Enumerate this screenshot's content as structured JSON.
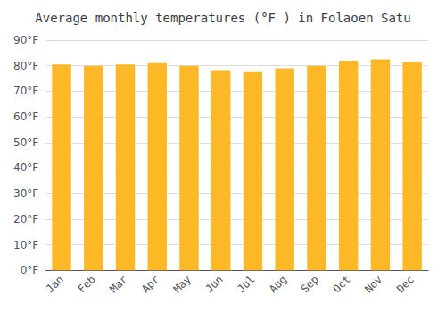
{
  "chart_data": {
    "type": "bar",
    "title": "Average monthly temperatures (°F ) in Folaoen Satu",
    "categories": [
      "Jan",
      "Feb",
      "Mar",
      "Apr",
      "May",
      "Jun",
      "Jul",
      "Aug",
      "Sep",
      "Oct",
      "Nov",
      "Dec"
    ],
    "values": [
      80.5,
      80.0,
      80.5,
      81.0,
      80.0,
      78.0,
      77.5,
      79.0,
      80.0,
      82.0,
      82.5,
      81.5
    ],
    "color": "#FDB827",
    "ylim": [
      0,
      90
    ],
    "yticks": [
      {
        "value": 0,
        "label": "0°F"
      },
      {
        "value": 10,
        "label": "10°F"
      },
      {
        "value": 20,
        "label": "20°F"
      },
      {
        "value": 30,
        "label": "30°F"
      },
      {
        "value": 40,
        "label": "40°F"
      },
      {
        "value": 50,
        "label": "50°F"
      },
      {
        "value": 60,
        "label": "60°F"
      },
      {
        "value": 70,
        "label": "70°F"
      },
      {
        "value": 80,
        "label": "80°F"
      },
      {
        "value": 90,
        "label": "90°F"
      }
    ],
    "grid": true
  }
}
